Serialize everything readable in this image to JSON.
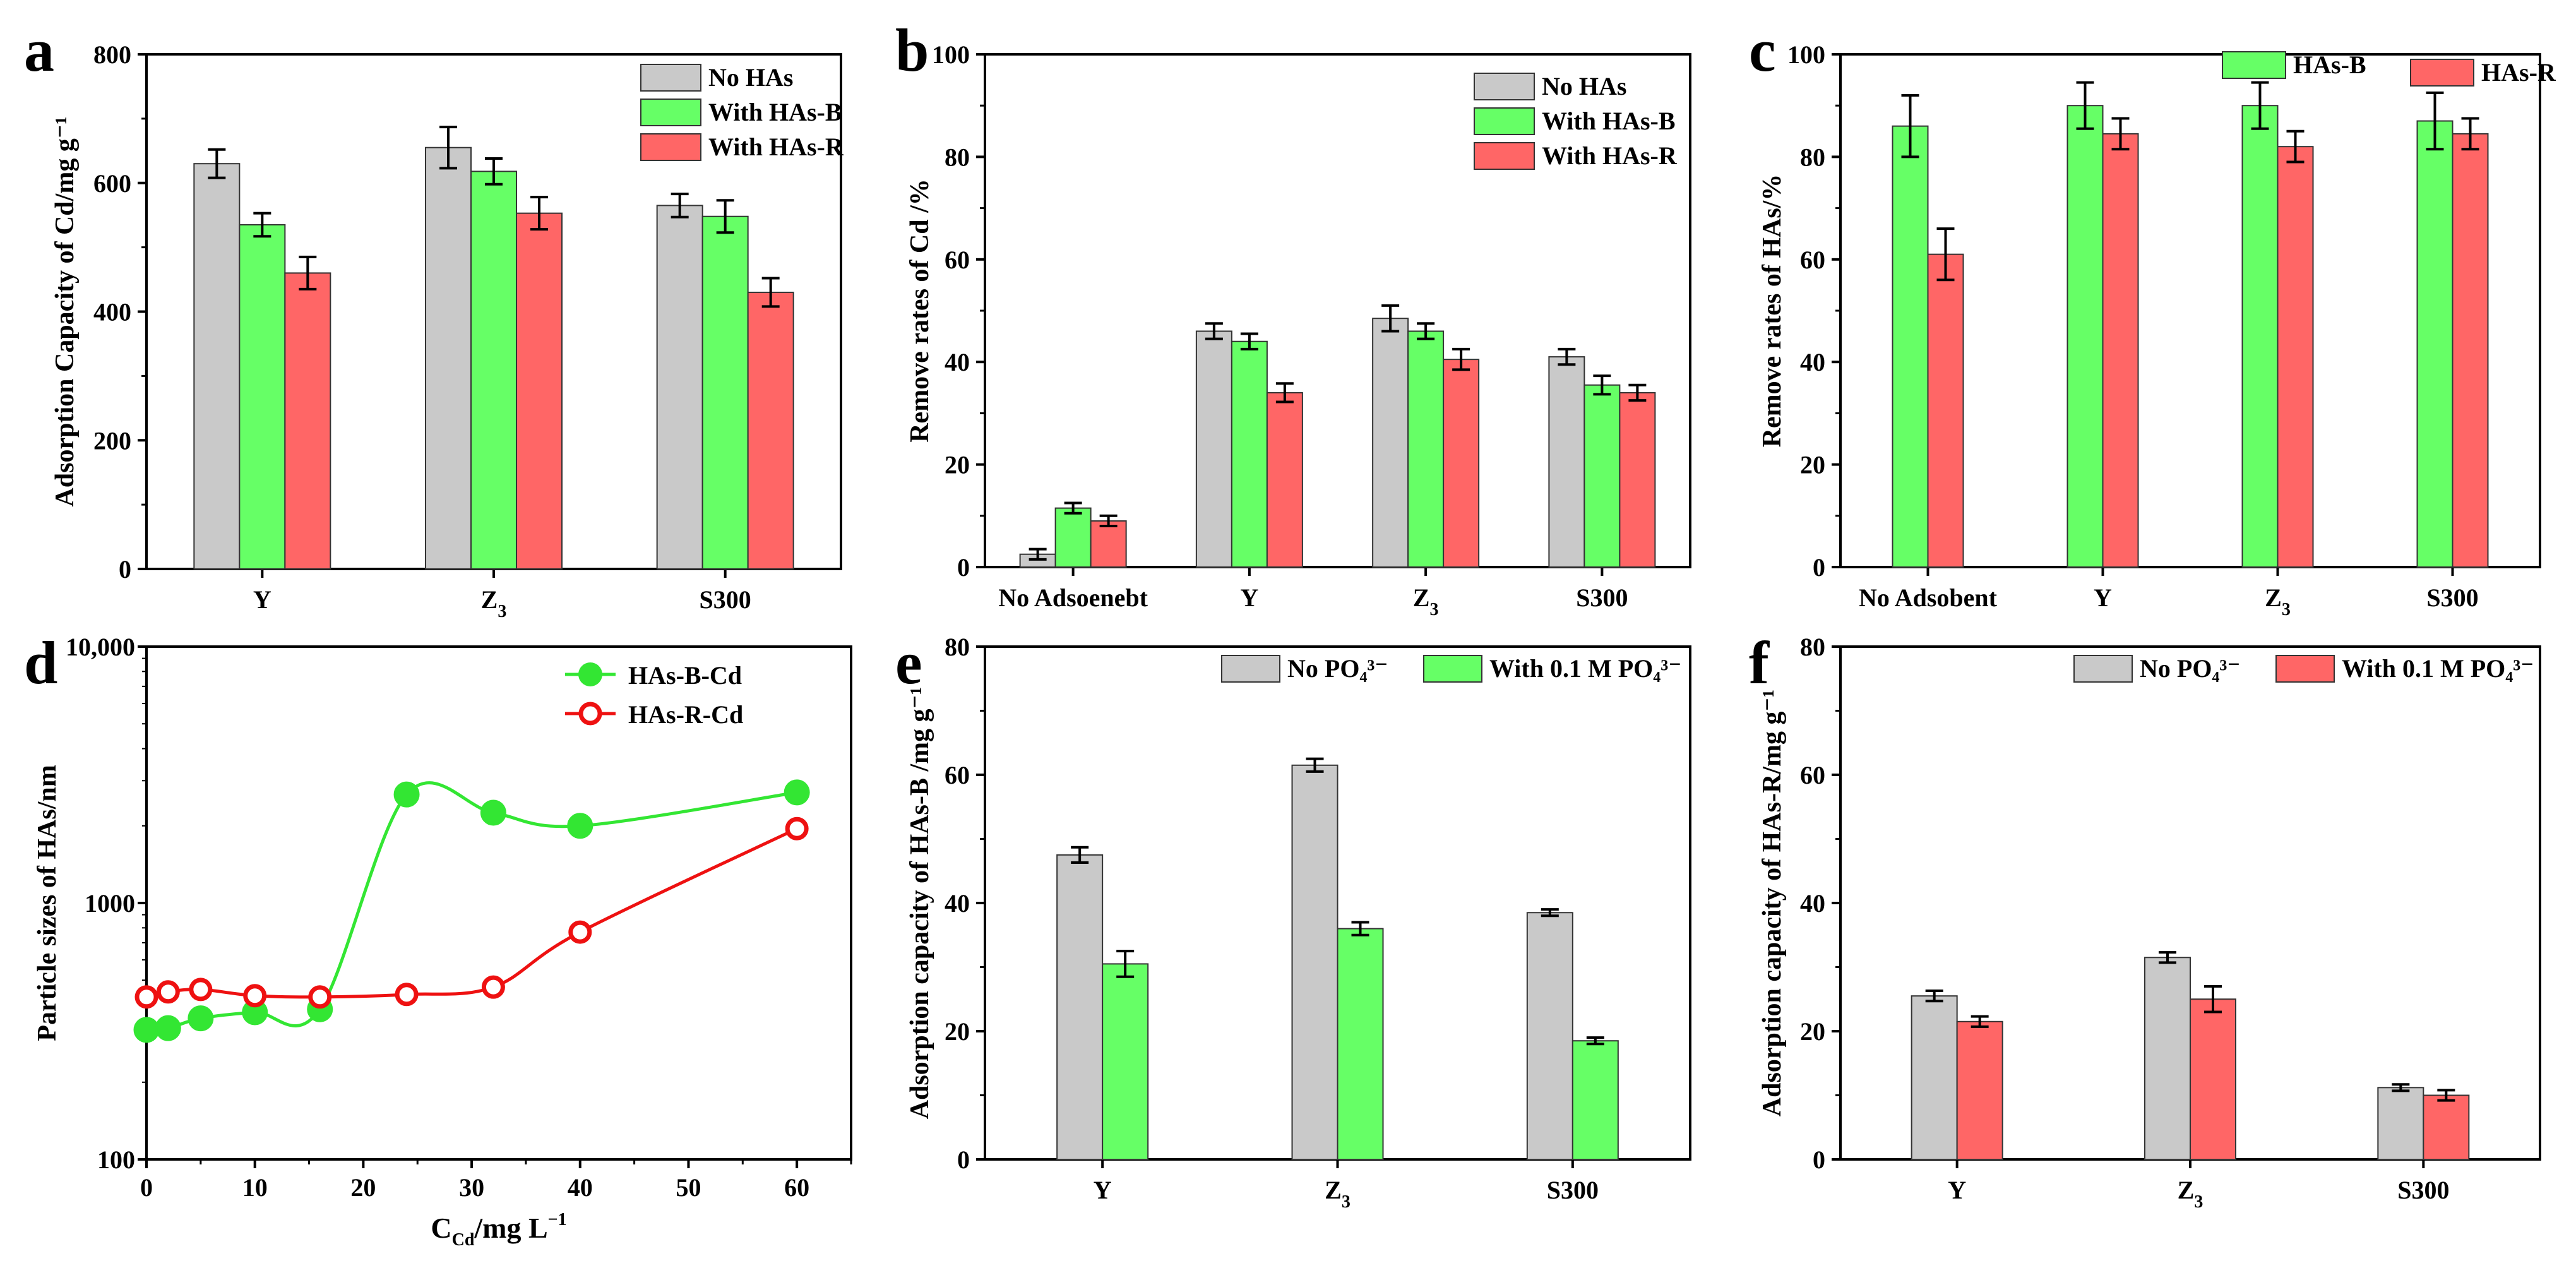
{
  "colors": {
    "gray": "#c9c9c9",
    "green": "#66ff66",
    "red": "#ff6666",
    "line_green": "#33e633",
    "line_red": "#ee1111",
    "axis": "#000000"
  },
  "chart_data": [
    {
      "panel": "a",
      "type": "bar",
      "title": "",
      "ylabel": "Adsorption Capacity of Cd/mg g⁻¹",
      "xlabel": "",
      "ylim": [
        0,
        800
      ],
      "yticks": [
        "0",
        "200",
        "400",
        "600",
        "800"
      ],
      "categories": [
        "Y",
        "Z₃",
        "S300"
      ],
      "legend": "top-right",
      "series": [
        {
          "name": "No HAs",
          "color": "gray",
          "values": [
            630,
            655,
            565
          ],
          "errors": [
            22,
            32,
            18
          ]
        },
        {
          "name": "With HAs-B",
          "color": "green",
          "values": [
            535,
            618,
            548
          ],
          "errors": [
            18,
            20,
            25
          ]
        },
        {
          "name": "With HAs-R",
          "color": "red",
          "values": [
            460,
            553,
            430
          ],
          "errors": [
            25,
            25,
            22
          ]
        }
      ]
    },
    {
      "panel": "b",
      "type": "bar",
      "title": "",
      "ylabel": "Remove rates of Cd /%",
      "xlabel": "",
      "ylim": [
        0,
        100
      ],
      "yticks": [
        "0",
        "20",
        "40",
        "60",
        "80",
        "100"
      ],
      "categories": [
        "No Adsoenebt",
        "Y",
        "Z₃",
        "S300"
      ],
      "legend": "top-right",
      "series": [
        {
          "name": "No HAs",
          "color": "gray",
          "values": [
            2.5,
            46,
            48.5,
            41
          ],
          "errors": [
            1,
            1.5,
            2.5,
            1.5
          ]
        },
        {
          "name": "With HAs-B",
          "color": "green",
          "values": [
            11.5,
            44,
            46,
            35.5
          ],
          "errors": [
            1,
            1.5,
            1.5,
            1.8
          ]
        },
        {
          "name": "With HAs-R",
          "color": "red",
          "values": [
            9,
            34,
            40.5,
            34
          ],
          "errors": [
            1,
            1.8,
            2,
            1.5
          ]
        }
      ]
    },
    {
      "panel": "c",
      "type": "bar",
      "title": "",
      "ylabel": "Remove rates of HAs/%",
      "xlabel": "",
      "ylim": [
        0,
        100
      ],
      "yticks": [
        "0",
        "20",
        "40",
        "60",
        "80",
        "100"
      ],
      "categories": [
        "No Adsobent",
        "Y",
        "Z₃",
        "S300"
      ],
      "legend": "top",
      "series": [
        {
          "name": "HAs-B",
          "color": "green",
          "values": [
            86,
            90,
            90,
            87
          ],
          "errors": [
            6,
            4.5,
            4.5,
            5.5
          ]
        },
        {
          "name": "HAs-R",
          "color": "red",
          "values": [
            61,
            84.5,
            82,
            84.5
          ],
          "errors": [
            5,
            3,
            3,
            3
          ]
        }
      ]
    },
    {
      "panel": "d",
      "type": "line",
      "title": "",
      "ylabel": "Particle sizes of HAs/nm",
      "xlabel": "C_Cd/mg L⁻¹",
      "xlabel_main": "C",
      "xlabel_sub": "Cd",
      "xlabel_rest": "/mg L",
      "xlabel_sup": "−1",
      "xlim": [
        0,
        65
      ],
      "xticks": [
        "0",
        "10",
        "20",
        "30",
        "40",
        "50",
        "60"
      ],
      "ylim": [
        100,
        10000
      ],
      "yscale": "log",
      "yticks": [
        "100",
        "1000",
        "10,000"
      ],
      "legend": "top-right",
      "series": [
        {
          "name": "HAs-B-Cd",
          "color": "line_green",
          "marker": "filled-circle",
          "x": [
            0,
            2,
            5,
            10,
            16,
            24,
            32,
            40,
            60
          ],
          "y": [
            320,
            325,
            355,
            375,
            385,
            2650,
            2250,
            2000,
            2700
          ]
        },
        {
          "name": "HAs-R-Cd",
          "color": "line_red",
          "marker": "open-circle",
          "x": [
            0,
            2,
            5,
            10,
            16,
            24,
            32,
            40,
            60
          ],
          "y": [
            430,
            450,
            460,
            435,
            430,
            440,
            470,
            770,
            1950
          ]
        }
      ]
    },
    {
      "panel": "e",
      "type": "bar",
      "title": "",
      "ylabel": "Adsorption capacity of HAs-B /mg g⁻¹",
      "xlabel": "",
      "ylim": [
        0,
        80
      ],
      "yticks": [
        "0",
        "20",
        "40",
        "60",
        "80"
      ],
      "categories": [
        "Y",
        "Z₃",
        "S300"
      ],
      "legend": "top",
      "series": [
        {
          "name": "No PO₄³⁻",
          "color": "gray",
          "values": [
            47.5,
            61.5,
            38.5
          ],
          "errors": [
            1.2,
            1,
            0.5
          ]
        },
        {
          "name": "With 0.1 M PO₄³⁻",
          "color": "green",
          "values": [
            30.5,
            36,
            18.5
          ],
          "errors": [
            2,
            1,
            0.5
          ]
        }
      ]
    },
    {
      "panel": "f",
      "type": "bar",
      "title": "",
      "ylabel": "Adsorption capacity of HAs-R/mg g⁻¹",
      "xlabel": "",
      "ylim": [
        0,
        80
      ],
      "yticks": [
        "0",
        "20",
        "40",
        "60",
        "80"
      ],
      "categories": [
        "Y",
        "Z₃",
        "S300"
      ],
      "legend": "top",
      "series": [
        {
          "name": "No PO₄³⁻",
          "color": "gray",
          "values": [
            25.5,
            31.5,
            11.2
          ],
          "errors": [
            0.8,
            0.8,
            0.5
          ]
        },
        {
          "name": "With 0.1 M PO₄³⁻",
          "color": "red",
          "values": [
            21.5,
            25,
            10
          ],
          "errors": [
            0.8,
            2,
            0.8
          ]
        }
      ]
    }
  ]
}
